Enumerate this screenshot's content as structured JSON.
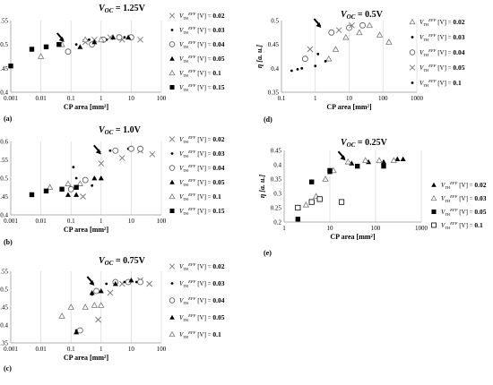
{
  "chart_data": [
    {
      "type": "scatter",
      "panel_label": "(a)",
      "title_main": "V",
      "title_sub": "OC",
      "title_eq": "=  1.25V",
      "xlabel": "CP area [mm²]",
      "ylabel": "η [a. u.]",
      "xscale": "log",
      "xlim": [
        0.001,
        100
      ],
      "ylim": [
        0.4,
        0.55
      ],
      "xticks": [
        0.001,
        0.01,
        0.1,
        1,
        10,
        100
      ],
      "xticklabels": [
        "0.001",
        "0.01",
        "0.1",
        "1",
        "10",
        "100"
      ],
      "yticks": [
        0.4,
        0.45,
        0.5,
        0.55
      ],
      "yticklabels": [
        "0.4",
        "0.45",
        "0.5",
        "0.55"
      ],
      "grid": "vertical",
      "arrow": {
        "x": 0.06,
        "y": 0.505
      },
      "series": [
        {
          "name": "0.02",
          "marker": "x",
          "points": [
            [
              0.3,
              0.505
            ],
            [
              0.6,
              0.51
            ],
            [
              2,
              0.515
            ],
            [
              5,
              0.51
            ],
            [
              20,
              0.51
            ]
          ]
        },
        {
          "name": "0.03",
          "marker": "dot",
          "points": [
            [
              0.15,
              0.5
            ],
            [
              0.4,
              0.51
            ],
            [
              1.5,
              0.51
            ],
            [
              6,
              0.515
            ]
          ]
        },
        {
          "name": "0.04",
          "marker": "circle",
          "points": [
            [
              0.08,
              0.485
            ],
            [
              0.5,
              0.5
            ],
            [
              1.2,
              0.51
            ],
            [
              4,
              0.515
            ],
            [
              10,
              0.515
            ]
          ]
        },
        {
          "name": "0.05",
          "marker": "triangle-filled",
          "points": [
            [
              0.2,
              0.495
            ],
            [
              0.6,
              0.505
            ],
            [
              2.5,
              0.515
            ],
            [
              8,
              0.515
            ]
          ]
        },
        {
          "name": "0.1",
          "marker": "triangle-open",
          "points": [
            [
              0.01,
              0.475
            ],
            [
              0.05,
              0.5
            ],
            [
              0.3,
              0.51
            ],
            [
              1,
              0.51
            ]
          ]
        },
        {
          "name": "0.15",
          "marker": "square-filled",
          "points": [
            [
              0.001,
              0.455
            ],
            [
              0.005,
              0.49
            ],
            [
              0.015,
              0.495
            ],
            [
              0.04,
              0.5
            ]
          ]
        }
      ]
    },
    {
      "type": "scatter",
      "panel_label": "(b)",
      "title_main": "V",
      "title_sub": "OC",
      "title_eq": "=  1.0V",
      "xlabel": "CP area [mm²]",
      "ylabel": "η [a. u.]",
      "xscale": "log",
      "xlim": [
        0.001,
        100
      ],
      "ylim": [
        0.4,
        0.6
      ],
      "xticks": [
        0.001,
        0.01,
        0.1,
        1,
        10,
        100
      ],
      "xticklabels": [
        "0.001",
        "0.01",
        "0.1",
        "1",
        "10",
        "100"
      ],
      "yticks": [
        0.4,
        0.45,
        0.5,
        0.55,
        0.6
      ],
      "yticklabels": [
        "0.4",
        "0.45",
        "0.5",
        "0.55",
        "0.6"
      ],
      "grid": "vertical",
      "arrow": {
        "x": 1,
        "y": 0.565
      },
      "series": [
        {
          "name": "0.02",
          "marker": "x",
          "points": [
            [
              0.25,
              0.45
            ],
            [
              1,
              0.54
            ],
            [
              5,
              0.555
            ],
            [
              20,
              0.575
            ],
            [
              50,
              0.565
            ]
          ]
        },
        {
          "name": "0.03",
          "marker": "dot",
          "points": [
            [
              0.12,
              0.53
            ],
            [
              0.15,
              0.5
            ],
            [
              0.5,
              0.48
            ],
            [
              2,
              0.575
            ],
            [
              8,
              0.58
            ]
          ]
        },
        {
          "name": "0.04",
          "marker": "circle",
          "points": [
            [
              0.1,
              0.47
            ],
            [
              0.3,
              0.495
            ],
            [
              3,
              0.575
            ],
            [
              10,
              0.58
            ],
            [
              20,
              0.58
            ]
          ]
        },
        {
          "name": "0.05",
          "marker": "triangle-filled",
          "points": [
            [
              0.08,
              0.455
            ],
            [
              0.15,
              0.455
            ],
            [
              0.6,
              0.5
            ],
            [
              1,
              0.5
            ]
          ]
        },
        {
          "name": "0.1",
          "marker": "triangle-open",
          "points": [
            [
              0.02,
              0.475
            ],
            [
              0.08,
              0.485
            ],
            [
              0.2,
              0.485
            ]
          ]
        },
        {
          "name": "0.15",
          "marker": "square-filled",
          "points": [
            [
              0.005,
              0.455
            ],
            [
              0.015,
              0.465
            ],
            [
              0.05,
              0.47
            ],
            [
              0.15,
              0.475
            ]
          ]
        }
      ]
    },
    {
      "type": "scatter",
      "panel_label": "(c)",
      "title_main": "V",
      "title_sub": "OC",
      "title_eq": "=  0.75V",
      "xlabel": "CP area [mm²]",
      "ylabel": "η [a. u.]",
      "xscale": "log",
      "xlim": [
        0.001,
        100
      ],
      "ylim": [
        0.35,
        0.55
      ],
      "xticks": [
        0.001,
        0.01,
        0.1,
        1,
        10,
        100
      ],
      "xticklabels": [
        "0.001",
        "0.01",
        "0.1",
        "1",
        "10",
        "100"
      ],
      "yticks": [
        0.35,
        0.4,
        0.45,
        0.5,
        0.55
      ],
      "yticklabels": [
        "0.35",
        "0.4",
        "0.45",
        "0.5",
        "0.55"
      ],
      "grid": "vertical",
      "arrow": {
        "x": 0.6,
        "y": 0.51
      },
      "series": [
        {
          "name": "0.02",
          "marker": "x",
          "points": [
            [
              0.8,
              0.415
            ],
            [
              2,
              0.49
            ],
            [
              5,
              0.515
            ],
            [
              20,
              0.525
            ],
            [
              40,
              0.515
            ]
          ]
        },
        {
          "name": "0.03",
          "marker": "dot",
          "points": [
            [
              0.15,
              0.385
            ],
            [
              0.5,
              0.485
            ],
            [
              1.5,
              0.515
            ],
            [
              6,
              0.52
            ],
            [
              15,
              0.52
            ]
          ]
        },
        {
          "name": "0.04",
          "marker": "circle",
          "points": [
            [
              0.2,
              0.385
            ],
            [
              0.7,
              0.495
            ],
            [
              3,
              0.52
            ],
            [
              8,
              0.52
            ],
            [
              20,
              0.52
            ]
          ]
        },
        {
          "name": "0.05",
          "marker": "triangle-filled",
          "points": [
            [
              0.15,
              0.38
            ],
            [
              0.5,
              0.49
            ],
            [
              1,
              0.495
            ],
            [
              3,
              0.515
            ],
            [
              10,
              0.525
            ]
          ]
        },
        {
          "name": "0.1",
          "marker": "triangle-open",
          "points": [
            [
              0.05,
              0.425
            ],
            [
              0.1,
              0.45
            ],
            [
              0.3,
              0.45
            ],
            [
              0.6,
              0.455
            ],
            [
              1,
              0.455
            ]
          ]
        }
      ]
    },
    {
      "type": "scatter",
      "panel_label": "(d)",
      "title_main": "V",
      "title_sub": "OC",
      "title_eq": "=  0.5V",
      "xlabel": "CP area [mm²]",
      "ylabel": "η [a. u.]",
      "xscale": "log",
      "xlim": [
        0.1,
        1000
      ],
      "ylim": [
        0.35,
        0.5
      ],
      "xticks": [
        0.1,
        1,
        10,
        100,
        1000
      ],
      "xticklabels": [
        "0.1",
        "1",
        "10",
        "100",
        "1000"
      ],
      "yticks": [
        0.35,
        0.4,
        0.45,
        0.5
      ],
      "yticklabels": [
        "0.35",
        "0.4",
        "0.45",
        "0.5"
      ],
      "grid": "vertical",
      "arrow": {
        "x": 1.5,
        "y": 0.485
      },
      "series": [
        {
          "name": "0.02",
          "marker": "triangle-open",
          "points": [
            [
              2.5,
              0.42
            ],
            [
              4,
              0.44
            ],
            [
              8,
              0.465
            ],
            [
              20,
              0.475
            ],
            [
              40,
              0.49
            ],
            [
              80,
              0.47
            ],
            [
              150,
              0.455
            ]
          ]
        },
        {
          "name": "0.03",
          "marker": "dot",
          "points": [
            [
              0.2,
              0.395
            ],
            [
              0.4,
              0.4
            ],
            [
              1,
              0.405
            ],
            [
              2,
              0.415
            ]
          ]
        },
        {
          "name": "0.04",
          "marker": "circle",
          "points": [
            [
              0.5,
              0.42
            ],
            [
              3,
              0.475
            ],
            [
              10,
              0.485
            ],
            [
              25,
              0.49
            ]
          ]
        },
        {
          "name": "0.05",
          "marker": "x",
          "points": [
            [
              0.7,
              0.44
            ],
            [
              5,
              0.48
            ],
            [
              12,
              0.49
            ]
          ]
        },
        {
          "name": "0.1",
          "marker": "dot",
          "points": [
            [
              0.3,
              0.398
            ],
            [
              1.2,
              0.43
            ]
          ]
        }
      ]
    },
    {
      "type": "scatter",
      "panel_label": "(e)",
      "title_main": "V",
      "title_sub": "OC",
      "title_eq": "= 0.25V",
      "xlabel": "CP area [mm²]",
      "ylabel": "η [a. u.]",
      "xscale": "log",
      "xlim": [
        1,
        1000
      ],
      "ylim": [
        0.2,
        0.45
      ],
      "xticks": [
        1,
        10,
        100,
        1000
      ],
      "xticklabels": [
        "1",
        "10",
        "100",
        "1000"
      ],
      "yticks": [
        0.2,
        0.25,
        0.3,
        0.35,
        0.4,
        0.45
      ],
      "yticklabels": [
        "0.2",
        "0.25",
        "0.3",
        "0.35",
        "0.4",
        "0.45"
      ],
      "grid": "vertical",
      "arrow": {
        "x": 22,
        "y": 0.415
      },
      "series": [
        {
          "name": "0.02",
          "marker": "triangle-filled",
          "points": [
            [
              10,
              0.375
            ],
            [
              30,
              0.405
            ],
            [
              70,
              0.41
            ],
            [
              150,
              0.41
            ],
            [
              300,
              0.42
            ],
            [
              400,
              0.42
            ]
          ]
        },
        {
          "name": "0.03",
          "marker": "triangle-open",
          "points": [
            [
              3,
              0.26
            ],
            [
              5,
              0.29
            ],
            [
              8,
              0.35
            ],
            [
              12,
              0.38
            ],
            [
              25,
              0.41
            ],
            [
              60,
              0.415
            ],
            [
              120,
              0.415
            ],
            [
              250,
              0.415
            ]
          ]
        },
        {
          "name": "0.05",
          "marker": "square-filled",
          "points": [
            [
              2,
              0.21
            ],
            [
              4,
              0.34
            ],
            [
              10,
              0.38
            ],
            [
              40,
              0.395
            ],
            [
              150,
              0.395
            ]
          ]
        },
        {
          "name": "0.1",
          "marker": "square-open",
          "points": [
            [
              2,
              0.25
            ],
            [
              4,
              0.27
            ],
            [
              6,
              0.28
            ],
            [
              18,
              0.27
            ]
          ]
        }
      ]
    }
  ]
}
